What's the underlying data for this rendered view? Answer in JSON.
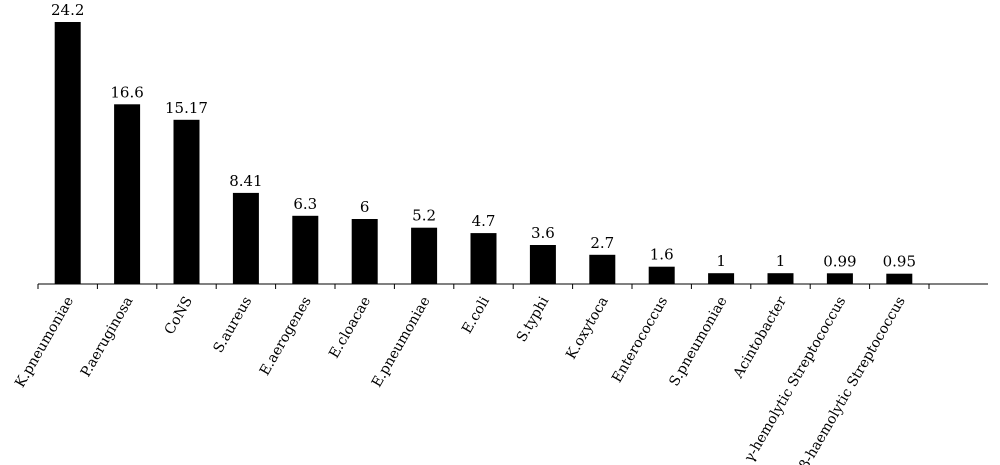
{
  "chart_data": {
    "type": "bar",
    "categories": [
      "K.pneumoniae",
      "P.aeruginosa",
      "CoNS",
      "S.aureus",
      "E.aerogenes",
      "E.cloacae",
      "E.pneumoniae",
      "E.coli",
      "S.typhi",
      "K.oxytoca",
      "Enterococcus",
      "S.pneumoniae",
      "Acintobacter",
      "γ-hemolytic Streptococcus",
      "β-haemolytic Streptococcus"
    ],
    "values": [
      24.2,
      16.6,
      15.17,
      8.41,
      6.3,
      6,
      5.2,
      4.7,
      3.6,
      2.7,
      1.6,
      1,
      1,
      0.99,
      0.95
    ],
    "value_labels": [
      "24.2",
      "16.6",
      "15.17",
      "8.41",
      "6.3",
      "6",
      "5.2",
      "4.7",
      "3.6",
      "2.7",
      "1.6",
      "1",
      "1",
      "0.99",
      "0.95"
    ],
    "ylim": [
      0,
      24.2
    ],
    "grid": false,
    "bar_color": "#000000"
  }
}
